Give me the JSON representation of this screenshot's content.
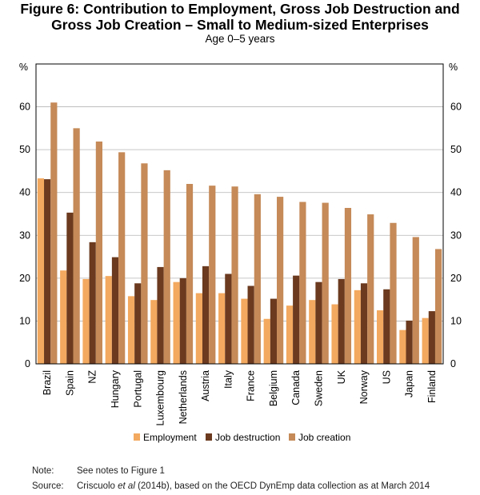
{
  "title_line1": "Figure 6: Contribution to Employment, Gross Job Destruction and",
  "title_line2": "Gross Job Creation – Small to Medium-sized Enterprises",
  "subtitle": "Age 0–5 years",
  "notes": {
    "note_label": "Note:",
    "note_text": "See notes to Figure 1",
    "source_label": "Source:",
    "source_prefix": "Criscuolo ",
    "source_italic": "et al",
    "source_suffix": " (2014b), based on the OECD DynEmp data collection as at March 2014"
  },
  "colors": {
    "employment": "#F3A95F",
    "job_destruction": "#6B3A1F",
    "job_creation": "#C58A58",
    "grid": "#b5b5b5"
  },
  "chart_data": {
    "type": "bar",
    "title": "Figure 6: Contribution to Employment, Gross Job Destruction and Gross Job Creation – Small to Medium-sized Enterprises",
    "subtitle": "Age 0–5 years",
    "ylabel_left": "%",
    "ylabel_right": "%",
    "ylim": [
      0,
      70
    ],
    "yticks": [
      0,
      10,
      20,
      30,
      40,
      50,
      60
    ],
    "grid": true,
    "legend_position": "bottom",
    "categories": [
      "Brazil",
      "Spain",
      "NZ",
      "Hungary",
      "Portugal",
      "Luxembourg",
      "Netherlands",
      "Austria",
      "Italy",
      "France",
      "Belgium",
      "Canada",
      "Sweden",
      "UK",
      "Norway",
      "US",
      "Japan",
      "Finland"
    ],
    "series": [
      {
        "name": "Employment",
        "values": [
          43.3,
          21.8,
          19.8,
          20.5,
          15.8,
          14.9,
          19.1,
          16.5,
          16.5,
          15.2,
          10.5,
          13.6,
          14.9,
          13.9,
          17.2,
          12.5,
          7.9,
          10.7
        ]
      },
      {
        "name": "Job destruction",
        "values": [
          43.1,
          35.3,
          28.4,
          24.9,
          18.8,
          22.6,
          20.0,
          22.8,
          21.0,
          18.2,
          15.2,
          20.6,
          19.1,
          19.8,
          18.8,
          17.4,
          10.1,
          12.3
        ]
      },
      {
        "name": "Job creation",
        "values": [
          61.0,
          55.0,
          51.9,
          49.4,
          46.8,
          45.2,
          42.0,
          41.6,
          41.4,
          39.6,
          39.0,
          37.8,
          37.6,
          36.4,
          34.9,
          32.9,
          29.6,
          26.8
        ]
      }
    ]
  }
}
